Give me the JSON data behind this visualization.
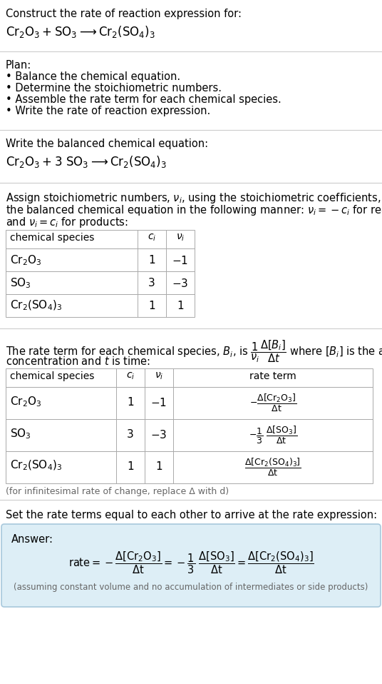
{
  "bg_color": "#ffffff",
  "text_color": "#000000",
  "gray_text": "#666666",
  "answer_bg": "#ddeef6",
  "answer_border": "#a8c8dc",
  "title_text": "Construct the rate of reaction expression for:",
  "plan_header": "Plan:",
  "plan_items": [
    "• Balance the chemical equation.",
    "• Determine the stoichiometric numbers.",
    "• Assemble the rate term for each chemical species.",
    "• Write the rate of reaction expression."
  ],
  "balanced_header": "Write the balanced chemical equation:",
  "set_text": "Set the rate terms equal to each other to arrive at the rate expression:",
  "answer_label": "Answer:",
  "assuming_note": "(assuming constant volume and no accumulation of intermediates or side products)",
  "infinitesimal_note": "(for infinitesimal rate of change, replace Δ with d)",
  "sep_color": "#cccccc",
  "table_border": "#aaaaaa"
}
